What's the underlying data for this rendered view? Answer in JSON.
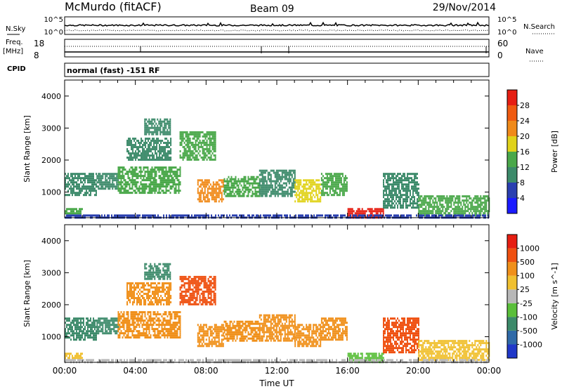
{
  "header": {
    "station": "McMurdo (fitACF)",
    "beam": "Beam 09",
    "date": "29/Nov/2014"
  },
  "strip": {
    "nsky_label": "N.Sky",
    "nsky_ticks": [
      "10^5",
      "10^0"
    ],
    "nsearch_label": "N.Search",
    "nsearch_ticks": [
      "10^5",
      "10^0"
    ],
    "freq_label": "Freq.",
    "freq_unit": "[MHz]",
    "freq_ticks": [
      "18",
      "8"
    ],
    "nave_label": "Nave",
    "nave_ticks": [
      "60",
      "0"
    ],
    "cpid_label": "CPID",
    "cpid_value": "normal (fast) -151 RF"
  },
  "chart_data": [
    {
      "type": "heatmap",
      "name": "power",
      "ylabel": "Slant Range [km]",
      "yticks": [
        1000,
        2000,
        3000,
        4000
      ],
      "ylim": [
        200,
        4500
      ],
      "xlim": [
        0,
        24
      ],
      "colorbar": {
        "label": "Power [dB]",
        "ticks": [
          "4",
          "8",
          "12",
          "16",
          "20",
          "24",
          "28"
        ],
        "colors": [
          "#1a1aff",
          "#2a3fb0",
          "#3c8a6a",
          "#4aa84a",
          "#e0d21a",
          "#f08a1a",
          "#ef5a10",
          "#e61e12"
        ]
      },
      "bands": [
        {
          "t0": 0.0,
          "t1": 1.8,
          "r0": 900,
          "r1": 1600,
          "level": 2
        },
        {
          "t0": 0.0,
          "t1": 1.0,
          "r0": 350,
          "r1": 500,
          "level": 3
        },
        {
          "t0": 1.8,
          "t1": 3.0,
          "r0": 1100,
          "r1": 1600,
          "level": 2
        },
        {
          "t0": 3.0,
          "t1": 6.5,
          "r0": 1000,
          "r1": 1800,
          "level": 3
        },
        {
          "t0": 3.5,
          "t1": 6.0,
          "r0": 2000,
          "r1": 2700,
          "level": 2
        },
        {
          "t0": 4.5,
          "t1": 6.0,
          "r0": 2800,
          "r1": 3300,
          "level": 2
        },
        {
          "t0": 6.5,
          "t1": 8.5,
          "r0": 2000,
          "r1": 2900,
          "level": 3
        },
        {
          "t0": 7.5,
          "t1": 9.0,
          "r0": 700,
          "r1": 1400,
          "level": 5
        },
        {
          "t0": 9.0,
          "t1": 11.0,
          "r0": 900,
          "r1": 1500,
          "level": 3
        },
        {
          "t0": 11.0,
          "t1": 13.0,
          "r0": 900,
          "r1": 1700,
          "level": 2
        },
        {
          "t0": 13.0,
          "t1": 14.5,
          "r0": 700,
          "r1": 1400,
          "level": 4
        },
        {
          "t0": 14.5,
          "t1": 16.0,
          "r0": 900,
          "r1": 1600,
          "level": 3
        },
        {
          "t0": 16.0,
          "t1": 18.0,
          "r0": 200,
          "r1": 500,
          "level": 7
        },
        {
          "t0": 18.0,
          "t1": 20.0,
          "r0": 500,
          "r1": 1600,
          "level": 2
        },
        {
          "t0": 20.0,
          "t1": 24.0,
          "r0": 300,
          "r1": 900,
          "level": 3
        },
        {
          "t0": 0.0,
          "t1": 24.0,
          "r0": 200,
          "r1": 300,
          "level": 1
        }
      ]
    },
    {
      "type": "heatmap",
      "name": "velocity",
      "ylabel": "Slant Range [km]",
      "xlabel": "Time UT",
      "xticks": [
        "00:00",
        "04:00",
        "08:00",
        "12:00",
        "16:00",
        "20:00",
        "00:00"
      ],
      "yticks": [
        1000,
        2000,
        3000,
        4000
      ],
      "ylim": [
        200,
        4500
      ],
      "xlim": [
        0,
        24
      ],
      "colorbar": {
        "label": "Velocity [m s^-1]",
        "ticks": [
          "1000",
          "500",
          "100",
          "25",
          "-25",
          "-100",
          "-500",
          "-1000"
        ],
        "colors": [
          "#2038c8",
          "#2f6aa8",
          "#3c8a6a",
          "#5abf3a",
          "#b8b8b8",
          "#f0c030",
          "#f0901a",
          "#ef5010",
          "#e61e12"
        ]
      },
      "bands": [
        {
          "t0": 0.0,
          "t1": 1.8,
          "r0": 900,
          "r1": 1600,
          "level": 2
        },
        {
          "t0": 0.0,
          "t1": 1.0,
          "r0": 350,
          "r1": 500,
          "level": 5
        },
        {
          "t0": 1.8,
          "t1": 3.0,
          "r0": 1100,
          "r1": 1600,
          "level": 2
        },
        {
          "t0": 3.0,
          "t1": 6.5,
          "r0": 1000,
          "r1": 1800,
          "level": 6
        },
        {
          "t0": 3.5,
          "t1": 6.0,
          "r0": 2000,
          "r1": 2700,
          "level": 6
        },
        {
          "t0": 4.5,
          "t1": 6.0,
          "r0": 2800,
          "r1": 3300,
          "level": 2
        },
        {
          "t0": 6.5,
          "t1": 8.5,
          "r0": 2000,
          "r1": 2900,
          "level": 7
        },
        {
          "t0": 7.5,
          "t1": 9.0,
          "r0": 700,
          "r1": 1400,
          "level": 6
        },
        {
          "t0": 9.0,
          "t1": 11.0,
          "r0": 900,
          "r1": 1500,
          "level": 6
        },
        {
          "t0": 11.0,
          "t1": 13.0,
          "r0": 900,
          "r1": 1700,
          "level": 6
        },
        {
          "t0": 13.0,
          "t1": 14.5,
          "r0": 700,
          "r1": 1400,
          "level": 6
        },
        {
          "t0": 14.5,
          "t1": 16.0,
          "r0": 900,
          "r1": 1600,
          "level": 6
        },
        {
          "t0": 16.0,
          "t1": 18.0,
          "r0": 200,
          "r1": 500,
          "level": 3
        },
        {
          "t0": 18.0,
          "t1": 20.0,
          "r0": 500,
          "r1": 1600,
          "level": 7
        },
        {
          "t0": 20.0,
          "t1": 24.0,
          "r0": 300,
          "r1": 900,
          "level": 5
        },
        {
          "t0": 0.0,
          "t1": 24.0,
          "r0": 200,
          "r1": 300,
          "level": 4
        }
      ]
    }
  ]
}
